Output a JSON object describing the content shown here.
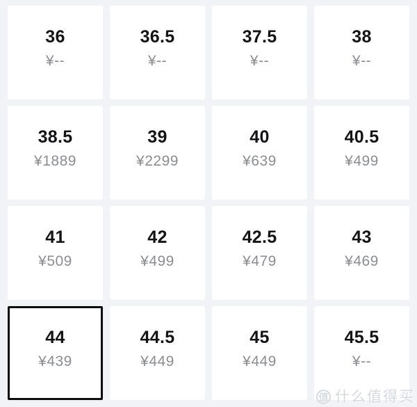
{
  "theme": {
    "background": "#f2f3f7",
    "card_background": "#ffffff",
    "size_text_color": "#141416",
    "price_text_color": "#8b8d93",
    "selected_border_color": "#0d0d0d",
    "watermark_color": "#d7d9e0"
  },
  "size_grid": {
    "currency_symbol": "¥",
    "options": [
      {
        "size": "36",
        "price": "¥--",
        "selected": false
      },
      {
        "size": "36.5",
        "price": "¥--",
        "selected": false
      },
      {
        "size": "37.5",
        "price": "¥--",
        "selected": false
      },
      {
        "size": "38",
        "price": "¥--",
        "selected": false
      },
      {
        "size": "38.5",
        "price": "¥1889",
        "selected": false
      },
      {
        "size": "39",
        "price": "¥2299",
        "selected": false
      },
      {
        "size": "40",
        "price": "¥639",
        "selected": false
      },
      {
        "size": "40.5",
        "price": "¥499",
        "selected": false
      },
      {
        "size": "41",
        "price": "¥509",
        "selected": false
      },
      {
        "size": "42",
        "price": "¥499",
        "selected": false
      },
      {
        "size": "42.5",
        "price": "¥479",
        "selected": false
      },
      {
        "size": "43",
        "price": "¥469",
        "selected": false
      },
      {
        "size": "44",
        "price": "¥439",
        "selected": true
      },
      {
        "size": "44.5",
        "price": "¥449",
        "selected": false
      },
      {
        "size": "45",
        "price": "¥449",
        "selected": false
      },
      {
        "size": "45.5",
        "price": "¥--",
        "selected": false
      }
    ]
  },
  "watermark": {
    "badge": "值",
    "text": "什么值得买"
  }
}
